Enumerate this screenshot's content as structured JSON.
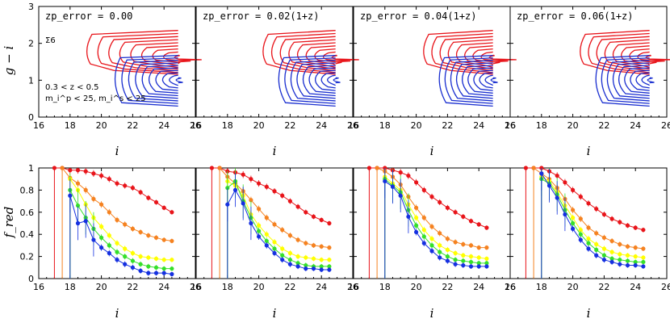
{
  "figure": {
    "top_ylabel": "g − i",
    "bottom_ylabel": "f_red",
    "xlabel": "i",
    "sigma_label": "Σ6",
    "note_line1": "0.3 < z < 0.5",
    "note_line2": "m_i^p < 25, m_i^s < 25"
  },
  "colors": {
    "red": "#e8141a",
    "blue": "#1a2fd0",
    "orange": "#f58220",
    "yellow": "#ffff00",
    "green": "#35e02a",
    "navy": "#1530e0"
  },
  "chart_data": [
    {
      "type": "contour",
      "row": "top",
      "panels": [
        {
          "title": "zp_error = 0.00",
          "red_y_peak": 1.6,
          "blue_y_peak": 1.0,
          "red_x_left": 19.0,
          "blue_x_left": 20.6
        },
        {
          "title": "zp_error = 0.02(1+z)",
          "red_y_peak": 1.6,
          "blue_y_peak": 1.0,
          "red_x_left": 20.2,
          "blue_x_left": 21.0
        },
        {
          "title": "zp_error = 0.04(1+z)",
          "red_y_peak": 1.6,
          "blue_y_peak": 1.0,
          "red_x_left": 20.4,
          "blue_x_left": 21.2
        },
        {
          "title": "zp_error = 0.06(1+z)",
          "red_y_peak": 1.6,
          "blue_y_peak": 1.0,
          "red_x_left": 20.4,
          "blue_x_left": 21.2
        }
      ],
      "xlim": [
        16,
        26
      ],
      "ylim": [
        0,
        3
      ],
      "xticks": [
        "16",
        "18",
        "20",
        "22",
        "24",
        "26"
      ],
      "yticks": [
        "0",
        "1",
        "2",
        "3"
      ]
    },
    {
      "type": "line",
      "row": "bottom",
      "xlim": [
        16,
        26
      ],
      "ylim": [
        0,
        1
      ],
      "xticks": [
        "16",
        "18",
        "20",
        "22",
        "24",
        "26"
      ],
      "yticks": [
        "0",
        "0.2",
        "0.4",
        "0.6",
        "0.8",
        "1"
      ],
      "x": [
        17.0,
        17.5,
        18.0,
        18.5,
        19.0,
        19.5,
        20.0,
        20.5,
        21.0,
        21.5,
        22.0,
        22.5,
        23.0,
        23.5,
        24.0,
        24.5
      ],
      "panels": [
        {
          "title": "zp_error = 0.00",
          "series": [
            {
              "color": "red",
              "values": [
                1.0,
                1.0,
                0.98,
                0.98,
                0.97,
                0.95,
                0.93,
                0.9,
                0.86,
                0.84,
                0.82,
                0.78,
                0.73,
                0.69,
                0.64,
                0.6
              ]
            },
            {
              "color": "orange",
              "values": [
                null,
                1.0,
                0.91,
                0.86,
                0.8,
                0.72,
                0.67,
                0.6,
                0.53,
                0.49,
                0.45,
                0.42,
                0.39,
                0.37,
                0.35,
                0.34
              ]
            },
            {
              "color": "yellow",
              "values": [
                null,
                null,
                0.9,
                0.8,
                0.67,
                0.55,
                0.47,
                0.39,
                0.32,
                0.27,
                0.23,
                0.2,
                0.19,
                0.18,
                0.17,
                0.17
              ]
            },
            {
              "color": "green",
              "values": [
                null,
                null,
                0.8,
                0.66,
                0.55,
                0.45,
                0.37,
                0.3,
                0.24,
                0.2,
                0.16,
                0.13,
                0.11,
                0.1,
                0.09,
                0.09
              ]
            },
            {
              "color": "navy",
              "values": [
                null,
                null,
                0.75,
                0.5,
                0.52,
                0.35,
                0.28,
                0.23,
                0.17,
                0.13,
                0.1,
                0.07,
                0.05,
                0.05,
                0.05,
                0.04
              ]
            }
          ]
        },
        {
          "title": "zp_error = 0.02(1+z)",
          "series": [
            {
              "color": "red",
              "values": [
                1.0,
                1.0,
                0.97,
                0.96,
                0.94,
                0.9,
                0.86,
                0.83,
                0.79,
                0.75,
                0.7,
                0.65,
                0.6,
                0.56,
                0.53,
                0.5
              ]
            },
            {
              "color": "orange",
              "values": [
                null,
                1.0,
                0.92,
                0.86,
                0.79,
                0.71,
                0.63,
                0.55,
                0.49,
                0.44,
                0.39,
                0.35,
                0.32,
                0.3,
                0.29,
                0.28
              ]
            },
            {
              "color": "yellow",
              "values": [
                null,
                null,
                0.88,
                0.84,
                0.75,
                0.58,
                0.48,
                0.4,
                0.33,
                0.27,
                0.23,
                0.2,
                0.19,
                0.18,
                0.17,
                0.17
              ]
            },
            {
              "color": "green",
              "values": [
                null,
                null,
                0.82,
                0.88,
                0.7,
                0.55,
                0.43,
                0.34,
                0.27,
                0.21,
                0.17,
                0.14,
                0.12,
                0.11,
                0.11,
                0.11
              ]
            },
            {
              "color": "navy",
              "values": [
                null,
                null,
                0.67,
                0.8,
                0.68,
                0.5,
                0.38,
                0.3,
                0.23,
                0.17,
                0.13,
                0.11,
                0.09,
                0.09,
                0.08,
                0.08
              ]
            }
          ]
        },
        {
          "title": "zp_error = 0.04(1+z)",
          "series": [
            {
              "color": "red",
              "values": [
                1.0,
                1.0,
                1.0,
                0.98,
                0.96,
                0.93,
                0.87,
                0.8,
                0.74,
                0.69,
                0.64,
                0.6,
                0.56,
                0.52,
                0.49,
                0.46
              ]
            },
            {
              "color": "orange",
              "values": [
                null,
                1.0,
                0.97,
                0.92,
                0.85,
                0.74,
                0.64,
                0.55,
                0.47,
                0.41,
                0.36,
                0.33,
                0.31,
                0.3,
                0.28,
                0.28
              ]
            },
            {
              "color": "yellow",
              "values": [
                null,
                null,
                0.92,
                0.86,
                0.8,
                0.67,
                0.55,
                0.44,
                0.36,
                0.3,
                0.26,
                0.23,
                0.21,
                0.2,
                0.19,
                0.18
              ]
            },
            {
              "color": "green",
              "values": [
                null,
                null,
                0.9,
                0.84,
                0.78,
                0.62,
                0.48,
                0.38,
                0.3,
                0.24,
                0.2,
                0.17,
                0.16,
                0.15,
                0.14,
                0.14
              ]
            },
            {
              "color": "navy",
              "values": [
                null,
                null,
                0.88,
                0.83,
                0.75,
                0.56,
                0.42,
                0.32,
                0.25,
                0.19,
                0.16,
                0.13,
                0.12,
                0.11,
                0.11,
                0.11
              ]
            }
          ]
        },
        {
          "title": "zp_error = 0.06(1+z)",
          "series": [
            {
              "color": "red",
              "values": [
                1.0,
                1.0,
                1.0,
                0.97,
                0.93,
                0.87,
                0.8,
                0.74,
                0.68,
                0.63,
                0.58,
                0.54,
                0.51,
                0.48,
                0.46,
                0.44
              ]
            },
            {
              "color": "orange",
              "values": [
                null,
                1.0,
                0.95,
                0.9,
                0.82,
                0.72,
                0.62,
                0.54,
                0.46,
                0.41,
                0.37,
                0.34,
                0.31,
                0.29,
                0.28,
                0.27
              ]
            },
            {
              "color": "yellow",
              "values": [
                null,
                null,
                0.92,
                0.88,
                0.78,
                0.66,
                0.55,
                0.44,
                0.36,
                0.31,
                0.27,
                0.24,
                0.22,
                0.21,
                0.2,
                0.19
              ]
            },
            {
              "color": "green",
              "values": [
                null,
                null,
                0.9,
                0.86,
                0.76,
                0.62,
                0.5,
                0.4,
                0.32,
                0.26,
                0.21,
                0.18,
                0.17,
                0.16,
                0.15,
                0.15
              ]
            },
            {
              "color": "navy",
              "values": [
                null,
                null,
                0.95,
                0.84,
                0.73,
                0.58,
                0.45,
                0.35,
                0.27,
                0.21,
                0.17,
                0.15,
                0.13,
                0.12,
                0.12,
                0.11
              ]
            }
          ]
        }
      ]
    }
  ]
}
